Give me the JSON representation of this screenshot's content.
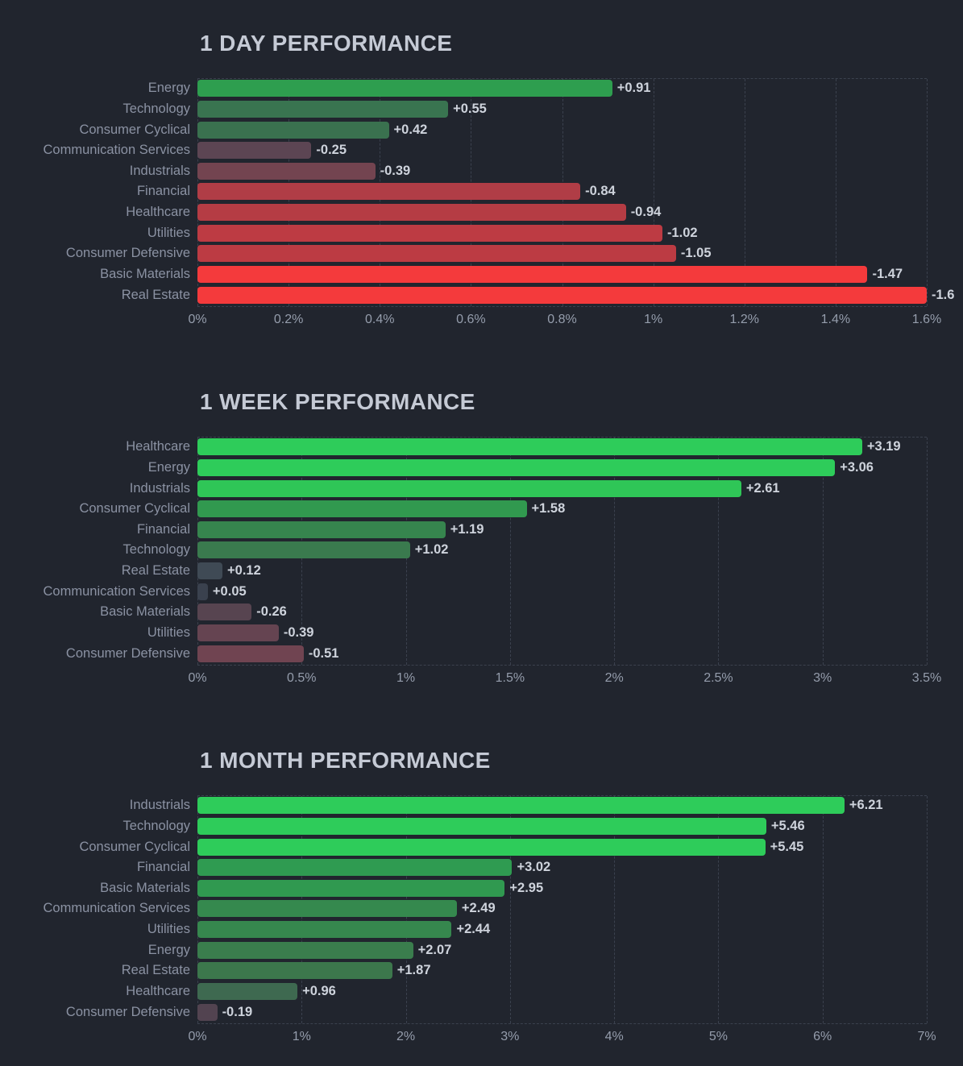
{
  "page": {
    "background": "#21252e",
    "grid_color": "#3b414e",
    "title_color": "#c5cad5",
    "category_label_color": "#8b92a3",
    "value_label_color": "#ced3dc",
    "axis_tick_color": "#959dac",
    "positive_bright": "#2ecc5a",
    "negative_bright": "#f43a3c"
  },
  "chart_data": [
    {
      "type": "bar",
      "orientation": "horizontal",
      "title": "1 DAY PERFORMANCE",
      "xlim": [
        0,
        1.6
      ],
      "ticks": [
        "0%",
        "0.2%",
        "0.4%",
        "0.6%",
        "0.8%",
        "1%",
        "1.2%",
        "1.4%",
        "1.6%"
      ],
      "grid": "vertical-dashed",
      "categories": [
        "Energy",
        "Technology",
        "Consumer Cyclical",
        "Communication Services",
        "Industrials",
        "Financial",
        "Healthcare",
        "Utilities",
        "Consumer Defensive",
        "Basic Materials",
        "Real Estate"
      ],
      "values": [
        0.91,
        0.55,
        0.42,
        -0.25,
        -0.39,
        -0.84,
        -0.94,
        -1.02,
        -1.05,
        -1.47,
        -1.6
      ],
      "value_labels": [
        "+0.91",
        "+0.55",
        "+0.42",
        "-0.25",
        "-0.39",
        "-0.84",
        "-0.94",
        "-1.02",
        "-1.05",
        "-1.47",
        "-1.6"
      ],
      "colors": [
        "#2e9e4f",
        "#397450",
        "#3a714f",
        "#5c4553",
        "#734450",
        "#b03d46",
        "#b53c44",
        "#bd3b43",
        "#bc3b43",
        "#f43a3c",
        "#f43a3c"
      ]
    },
    {
      "type": "bar",
      "orientation": "horizontal",
      "title": "1 WEEK PERFORMANCE",
      "xlim": [
        0,
        3.5
      ],
      "ticks": [
        "0%",
        "0.5%",
        "1%",
        "1.5%",
        "2%",
        "2.5%",
        "3%",
        "3.5%"
      ],
      "grid": "vertical-dashed",
      "categories": [
        "Healthcare",
        "Energy",
        "Industrials",
        "Consumer Cyclical",
        "Financial",
        "Technology",
        "Real Estate",
        "Communication Services",
        "Basic Materials",
        "Utilities",
        "Consumer Defensive"
      ],
      "values": [
        3.19,
        3.06,
        2.61,
        1.58,
        1.19,
        1.02,
        0.12,
        0.05,
        -0.26,
        -0.39,
        -0.51
      ],
      "value_labels": [
        "+3.19",
        "+3.06",
        "+2.61",
        "+1.58",
        "+1.19",
        "+1.02",
        "+0.12",
        "+0.05",
        "-0.26",
        "-0.39",
        "-0.51"
      ],
      "colors": [
        "#2ecc5a",
        "#2ecc5a",
        "#2fc657",
        "#31994f",
        "#36854e",
        "#3a7a4e",
        "#3f4a55",
        "#3a414e",
        "#574450",
        "#654451",
        "#704451"
      ]
    },
    {
      "type": "bar",
      "orientation": "horizontal",
      "title": "1 MONTH PERFORMANCE",
      "xlim": [
        0,
        7
      ],
      "ticks": [
        "0%",
        "1%",
        "2%",
        "3%",
        "4%",
        "5%",
        "6%",
        "7%"
      ],
      "grid": "vertical-dashed",
      "categories": [
        "Industrials",
        "Technology",
        "Consumer Cyclical",
        "Financial",
        "Basic Materials",
        "Communication Services",
        "Utilities",
        "Energy",
        "Real Estate",
        "Healthcare",
        "Consumer Defensive"
      ],
      "values": [
        6.21,
        5.46,
        5.45,
        3.02,
        2.95,
        2.49,
        2.44,
        2.07,
        1.87,
        0.96,
        -0.19
      ],
      "value_labels": [
        "+6.21",
        "+5.46",
        "+5.45",
        "+3.02",
        "+2.95",
        "+2.49",
        "+2.44",
        "+2.07",
        "+1.87",
        "+0.96",
        "-0.19"
      ],
      "colors": [
        "#2ecc5a",
        "#2ecc5a",
        "#2ecc5a",
        "#2f9b51",
        "#309950",
        "#35894e",
        "#36874e",
        "#3a7d4d",
        "#3c774c",
        "#3e6950",
        "#524350"
      ]
    }
  ]
}
